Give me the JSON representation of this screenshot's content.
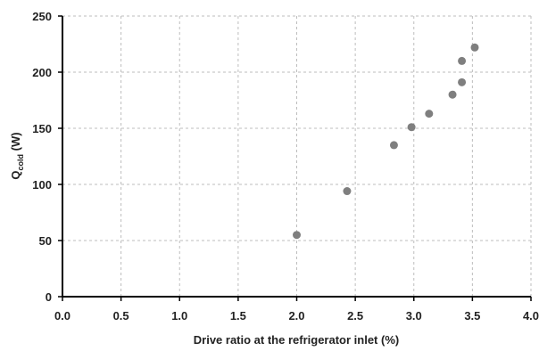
{
  "chart_data": {
    "type": "scatter",
    "title": "",
    "xlabel": "Drive ratio at the refrigerator inlet (%)",
    "ylabel": {
      "main": "Q",
      "subscript": "cold",
      "unit": " (W)"
    },
    "xlim": [
      0,
      4
    ],
    "ylim": [
      0,
      250
    ],
    "x_ticks": [
      "0.0",
      "0.5",
      "1.0",
      "1.5",
      "2.0",
      "2.5",
      "3.0",
      "3.5",
      "4.0"
    ],
    "y_ticks": [
      "0",
      "50",
      "100",
      "150",
      "200",
      "250"
    ],
    "grid": true,
    "marker_color": "#7f7f7f",
    "series": [
      {
        "points": [
          {
            "x": 2.0,
            "y": 55
          },
          {
            "x": 2.43,
            "y": 94
          },
          {
            "x": 2.83,
            "y": 135
          },
          {
            "x": 2.98,
            "y": 151
          },
          {
            "x": 3.13,
            "y": 163
          },
          {
            "x": 3.33,
            "y": 180
          },
          {
            "x": 3.41,
            "y": 191
          },
          {
            "x": 3.41,
            "y": 210
          },
          {
            "x": 3.52,
            "y": 222
          }
        ]
      }
    ]
  }
}
